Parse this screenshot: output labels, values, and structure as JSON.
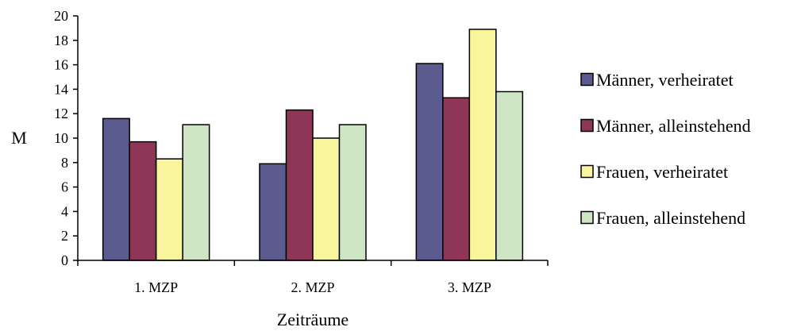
{
  "chart_data": {
    "type": "bar",
    "categories": [
      "1. MZP",
      "2. MZP",
      "3. MZP"
    ],
    "series": [
      {
        "name": "Männer, verheiratet",
        "color": "#5c5b8f",
        "values": [
          11.6,
          7.9,
          16.1
        ]
      },
      {
        "name": "Männer, alleinstehend",
        "color": "#8e3558",
        "values": [
          9.7,
          12.3,
          13.3
        ]
      },
      {
        "name": "Frauen, verheiratet",
        "color": "#f8f59c",
        "values": [
          8.3,
          10.0,
          18.9
        ]
      },
      {
        "name": "Frauen, alleinstehend",
        "color": "#cfe6c5",
        "values": [
          11.1,
          11.1,
          13.8
        ]
      }
    ],
    "xlabel": "Zeiträume",
    "ylabel": "M",
    "ylim": [
      0,
      20
    ],
    "yticks": [
      "0",
      "2",
      "4",
      "6",
      "8",
      "10",
      "12",
      "14",
      "16",
      "18",
      "20"
    ],
    "grid": false,
    "legend_position": "right"
  }
}
